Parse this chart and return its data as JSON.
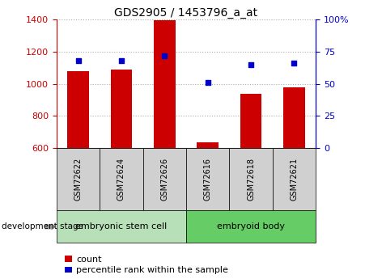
{
  "title": "GDS2905 / 1453796_a_at",
  "samples": [
    "GSM72622",
    "GSM72624",
    "GSM72626",
    "GSM72616",
    "GSM72618",
    "GSM72621"
  ],
  "counts": [
    1080,
    1090,
    1395,
    635,
    935,
    975
  ],
  "percentiles": [
    68,
    68,
    72,
    51,
    65,
    66
  ],
  "ylim_left": [
    600,
    1400
  ],
  "ylim_right": [
    0,
    100
  ],
  "yticks_left": [
    600,
    800,
    1000,
    1200,
    1400
  ],
  "yticks_right": [
    0,
    25,
    50,
    75,
    100
  ],
  "bar_color": "#cc0000",
  "dot_color": "#0000cc",
  "bar_width": 0.5,
  "groups": [
    {
      "label": "embryonic stem cell",
      "start": 0,
      "end": 3,
      "color": "#aaddaa"
    },
    {
      "label": "embryoid body",
      "start": 3,
      "end": 6,
      "color": "#66cc66"
    }
  ],
  "group_label_prefix": "development stage",
  "legend_count_label": "count",
  "legend_percentile_label": "percentile rank within the sample",
  "grid_color": "#aaaaaa",
  "left_axis_color": "#cc0000",
  "right_axis_color": "#0000cc",
  "title_fontsize": 10,
  "tick_fontsize": 8,
  "legend_fontsize": 8,
  "sample_label_bg": "#d0d0d0",
  "group1_color": "#b8e0b8",
  "group2_color": "#66cc66"
}
